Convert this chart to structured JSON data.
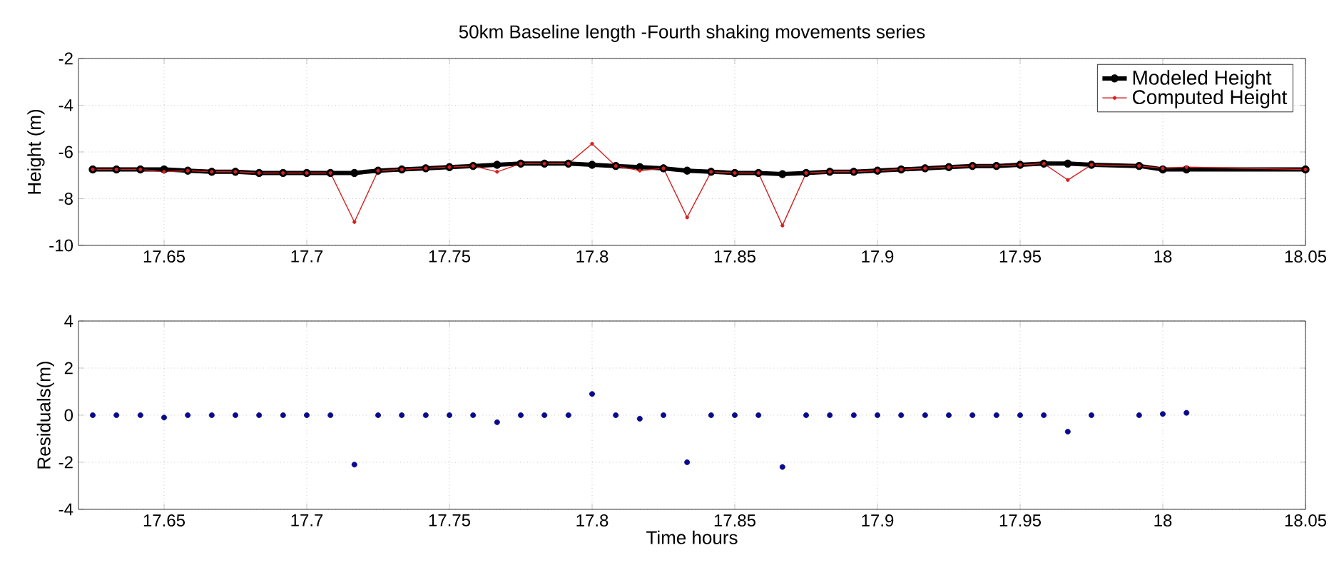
{
  "chart_data": [
    {
      "type": "line",
      "title": "50km Baseline length -Fourth shaking movements series",
      "ylabel": "Height (m)",
      "xlim": [
        17.62,
        18.05
      ],
      "ylim": [
        -10,
        -2
      ],
      "xticks": [
        17.65,
        17.7,
        17.75,
        17.8,
        17.85,
        17.9,
        17.95,
        18,
        18.05
      ],
      "yticks": [
        -10,
        -8,
        -6,
        -4,
        -2
      ],
      "grid": true,
      "legend": "top right",
      "series": [
        {
          "name": "Modeled Height",
          "color": "#000000",
          "marker": "circle",
          "line_style": "solid",
          "x": [
            17.625,
            17.6333,
            17.6417,
            17.65,
            17.6583,
            17.6667,
            17.675,
            17.6833,
            17.6917,
            17.7,
            17.7083,
            17.7167,
            17.725,
            17.7333,
            17.7417,
            17.75,
            17.7583,
            17.7667,
            17.775,
            17.7833,
            17.7917,
            17.8,
            17.8083,
            17.8167,
            17.825,
            17.8333,
            17.8417,
            17.85,
            17.8583,
            17.8667,
            17.875,
            17.8833,
            17.8917,
            17.9,
            17.9083,
            17.9167,
            17.925,
            17.9333,
            17.9417,
            17.95,
            17.9583,
            17.9667,
            17.975,
            17.9917,
            18,
            18.0083,
            18.05
          ],
          "values": [
            -6.75,
            -6.75,
            -6.75,
            -6.75,
            -6.8,
            -6.85,
            -6.85,
            -6.9,
            -6.9,
            -6.9,
            -6.9,
            -6.9,
            -6.8,
            -6.75,
            -6.7,
            -6.65,
            -6.6,
            -6.55,
            -6.5,
            -6.5,
            -6.5,
            -6.55,
            -6.6,
            -6.65,
            -6.7,
            -6.8,
            -6.85,
            -6.9,
            -6.9,
            -6.95,
            -6.9,
            -6.85,
            -6.85,
            -6.8,
            -6.75,
            -6.7,
            -6.65,
            -6.6,
            -6.6,
            -6.55,
            -6.5,
            -6.5,
            -6.55,
            -6.6,
            -6.75,
            -6.75,
            -6.75
          ]
        },
        {
          "name": "Computed Height",
          "color": "#d62020",
          "marker": "circle",
          "line_style": "solid",
          "x": [
            17.625,
            17.6333,
            17.6417,
            17.65,
            17.6583,
            17.6667,
            17.675,
            17.6833,
            17.6917,
            17.7,
            17.7083,
            17.7167,
            17.725,
            17.7333,
            17.7417,
            17.75,
            17.7583,
            17.7667,
            17.775,
            17.7833,
            17.7917,
            17.8,
            17.8083,
            17.8167,
            17.825,
            17.8333,
            17.8417,
            17.85,
            17.8583,
            17.8667,
            17.875,
            17.8833,
            17.8917,
            17.9,
            17.9083,
            17.9167,
            17.925,
            17.9333,
            17.9417,
            17.95,
            17.9583,
            17.9667,
            17.975,
            17.9917,
            18,
            18.0083,
            18.05
          ],
          "values": [
            -6.75,
            -6.75,
            -6.75,
            -6.85,
            -6.8,
            -6.85,
            -6.85,
            -6.9,
            -6.9,
            -6.9,
            -6.9,
            -9.0,
            -6.8,
            -6.75,
            -6.7,
            -6.65,
            -6.6,
            -6.85,
            -6.5,
            -6.5,
            -6.5,
            -5.65,
            -6.6,
            -6.8,
            -6.7,
            -8.8,
            -6.85,
            -6.9,
            -6.9,
            -9.15,
            -6.9,
            -6.85,
            -6.85,
            -6.8,
            -6.75,
            -6.7,
            -6.65,
            -6.6,
            -6.6,
            -6.55,
            -6.5,
            -7.2,
            -6.55,
            -6.6,
            -6.7,
            -6.65,
            -6.75
          ]
        }
      ]
    },
    {
      "type": "scatter",
      "xlabel": "Time hours",
      "ylabel": "Residuals(m)",
      "xlim": [
        17.62,
        18.05
      ],
      "ylim": [
        -4,
        4
      ],
      "xticks": [
        17.65,
        17.7,
        17.75,
        17.8,
        17.85,
        17.9,
        17.95,
        18,
        18.05
      ],
      "yticks": [
        -4,
        -2,
        0,
        2,
        4
      ],
      "grid": true,
      "marker": "circle",
      "color": "#0a0a8c",
      "x": [
        17.625,
        17.6333,
        17.6417,
        17.65,
        17.6583,
        17.6667,
        17.675,
        17.6833,
        17.6917,
        17.7,
        17.7083,
        17.7167,
        17.725,
        17.7333,
        17.7417,
        17.75,
        17.7583,
        17.7667,
        17.775,
        17.7833,
        17.7917,
        17.8,
        17.8083,
        17.8167,
        17.825,
        17.8333,
        17.8417,
        17.85,
        17.8583,
        17.8667,
        17.875,
        17.8833,
        17.8917,
        17.9,
        17.9083,
        17.9167,
        17.925,
        17.9333,
        17.9417,
        17.95,
        17.9583,
        17.9667,
        17.975,
        17.9917,
        18,
        18.0083
      ],
      "values": [
        0,
        0,
        0,
        -0.1,
        0,
        0,
        0,
        0,
        0,
        0,
        0,
        -2.1,
        0,
        0,
        0,
        0,
        0,
        -0.3,
        0,
        0,
        0,
        0.9,
        0,
        -0.15,
        0,
        -2.0,
        0,
        0,
        0,
        -2.2,
        0,
        0,
        0,
        0,
        0,
        0,
        0,
        0,
        0,
        0,
        0,
        -0.7,
        0,
        0,
        0.05,
        0.1
      ]
    }
  ]
}
